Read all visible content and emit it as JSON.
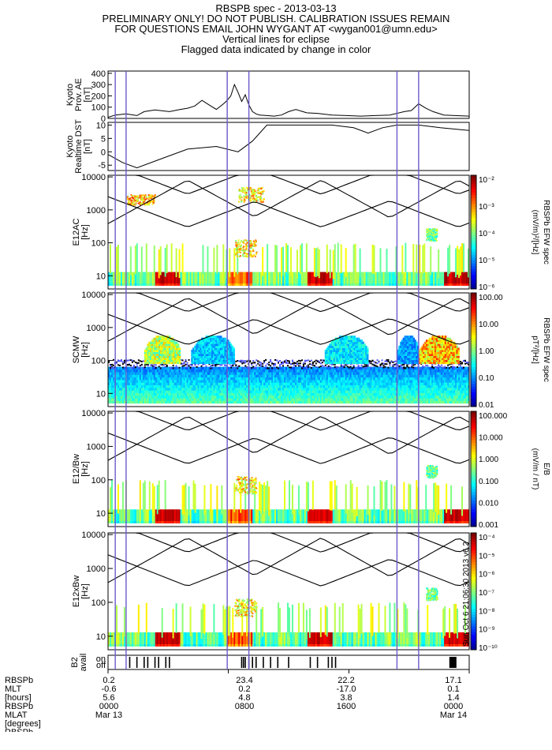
{
  "header": {
    "line1": "RBSPB spec - 2013-03-13",
    "line2": "PRELIMINARY ONLY! DO NOT PUBLISH. CALIBRATION ISSUES REMAIN",
    "line3": "FOR QUESTIONS EMAIL JOHN WYGANT AT <wygan001@umn.edu>",
    "line4": "Vertical lines for eclipse",
    "line5": "Flagged data indicated by change in color"
  },
  "chart_data": [
    {
      "type": "line",
      "panel": "Kyoto AE",
      "ylabel": [
        "Kyoto",
        "Prov. AE",
        "[nT]"
      ],
      "yticks": [
        0,
        100,
        200,
        300,
        400
      ],
      "ylim": [
        0,
        420
      ],
      "x": [
        0,
        0.02,
        0.05,
        0.08,
        0.1,
        0.13,
        0.17,
        0.2,
        0.22,
        0.24,
        0.26,
        0.28,
        0.3,
        0.32,
        0.33,
        0.34,
        0.35,
        0.36,
        0.37,
        0.38,
        0.39,
        0.4,
        0.41,
        0.42,
        0.44,
        0.46,
        0.48,
        0.5,
        0.52,
        0.55,
        0.58,
        0.62,
        0.66,
        0.7,
        0.74,
        0.78,
        0.82,
        0.84,
        0.86,
        0.88,
        0.9,
        0.93,
        0.96,
        1.0
      ],
      "values": [
        10,
        30,
        40,
        25,
        60,
        75,
        60,
        80,
        90,
        110,
        160,
        120,
        80,
        130,
        160,
        200,
        300,
        230,
        150,
        210,
        120,
        60,
        40,
        30,
        25,
        20,
        30,
        60,
        80,
        50,
        45,
        30,
        25,
        20,
        25,
        30,
        60,
        70,
        130,
        90,
        60,
        30,
        25,
        20
      ]
    },
    {
      "type": "line",
      "panel": "Kyoto DST",
      "ylabel": [
        "Kyoto",
        "Realtime DST",
        "[nT]"
      ],
      "yticks": [
        -5,
        0,
        5,
        10
      ],
      "ylim": [
        -7,
        11
      ],
      "x": [
        0,
        0.04,
        0.08,
        0.14,
        0.22,
        0.3,
        0.36,
        0.4,
        0.44,
        0.5,
        0.56,
        0.62,
        0.68,
        0.72,
        0.76,
        0.8,
        0.86,
        0.92,
        1.0
      ],
      "values": [
        -1,
        -4,
        -6,
        -3,
        1,
        2,
        0,
        4,
        10,
        10,
        10,
        10,
        9,
        7,
        9,
        10,
        10,
        9,
        8
      ]
    },
    {
      "type": "heatmap",
      "panel": "E12AC",
      "ylabel": [
        "E12AC",
        "[Hz]"
      ],
      "yscale": "log",
      "yticks": [
        10,
        100,
        1000,
        10000
      ],
      "colorbar_ticks": [
        "10⁻²",
        "10⁻³",
        "10⁻⁴",
        "10⁻⁵",
        "10⁻⁶"
      ],
      "colorbar_label": [
        "(mV/m)²/[Hz]",
        "RBSPb EFW spec"
      ]
    },
    {
      "type": "heatmap",
      "panel": "SCMW",
      "ylabel": [
        "SCMW",
        "[Hz]"
      ],
      "yscale": "log",
      "yticks": [
        10,
        100,
        1000,
        10000
      ],
      "colorbar_ticks": [
        "100.00",
        "10.00",
        "1.00",
        "0.10",
        "0.01"
      ],
      "colorbar_label": [
        "pT²/[Hz]",
        "RBSPb EFW spec"
      ]
    },
    {
      "type": "heatmap",
      "panel": "E12/Bw",
      "ylabel": [
        "E12/Bw",
        "[Hz]"
      ],
      "yscale": "log",
      "yticks": [
        10,
        100,
        1000,
        10000
      ],
      "colorbar_ticks": [
        "100.000",
        "10.000",
        "1.000",
        "0.100",
        "0.010",
        "0.001"
      ],
      "colorbar_label": [
        "(mV/m / nT)",
        "E/B"
      ]
    },
    {
      "type": "heatmap",
      "panel": "E12xBw",
      "ylabel": [
        "E12xBw",
        "[Hz]"
      ],
      "yscale": "log",
      "yticks": [
        10,
        100,
        1000,
        10000
      ],
      "colorbar_ticks": [
        "10⁻⁴",
        "10⁻⁵",
        "10⁻⁶",
        "10⁻⁷",
        "10⁻⁸",
        "10⁻⁹",
        "10⁻¹⁰"
      ],
      "side_label": "Sun Oct 6 21:06:30 2013 v6.2"
    },
    {
      "type": "bar",
      "panel": "B2 avail",
      "ylabel": [
        "B2",
        "avail"
      ],
      "yticks": [
        "off",
        "on"
      ]
    }
  ],
  "eclipse_lines_x": [
    0.02,
    0.05,
    0.33,
    0.39,
    0.8,
    0.86
  ],
  "footer": {
    "row_labels": [
      "RBSPb",
      "MLT",
      "[hours]",
      "RBSPb",
      "MLAT",
      "[degrees]",
      "RBSPb"
    ],
    "columns": [
      {
        "mlt": "0.2",
        "hours": "-0.6",
        "mlat": "5.6",
        "time": "0000",
        "date": "Mar 13"
      },
      {
        "mlt": "23.4",
        "hours": "0.2",
        "mlat": "4.8",
        "time": "0800",
        "date": ""
      },
      {
        "mlt": "22.2",
        "hours": "-17.0",
        "mlat": "3.8",
        "time": "1600",
        "date": ""
      },
      {
        "mlt": "17.1",
        "hours": "0.1",
        "mlat": "1.4",
        "time": "0000",
        "date": "Mar 14"
      }
    ]
  }
}
